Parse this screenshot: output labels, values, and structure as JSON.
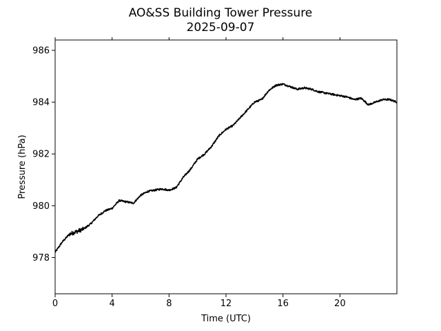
{
  "chart_data": {
    "type": "line",
    "title": "AO&SS Building Tower Pressure",
    "subtitle": "2025-09-07",
    "xlabel": "Time (UTC)",
    "ylabel": "Pressure (hPa)",
    "xlim": [
      0,
      24
    ],
    "ylim": [
      976.6,
      986.4
    ],
    "xticks": [
      0,
      4,
      8,
      12,
      16,
      20
    ],
    "yticks": [
      978,
      980,
      982,
      984,
      986
    ],
    "grid": false,
    "legend": "none",
    "line_color": "#000000",
    "series": [
      {
        "x": [
          0,
          0.5,
          1.0,
          1.5,
          2.0,
          2.5,
          3.0,
          3.5,
          4.0,
          4.5,
          5.0,
          5.5,
          6.0,
          6.5,
          7.0,
          7.5,
          8.0,
          8.5,
          9.0,
          9.5,
          10.0,
          10.5,
          11.0,
          11.5,
          12.0,
          12.5,
          13.0,
          13.5,
          14.0,
          14.5,
          15.0,
          15.5,
          16.0,
          16.5,
          17.0,
          17.5,
          18.0,
          18.5,
          19.0,
          19.5,
          20.0,
          20.5,
          21.0,
          21.5,
          22.0,
          22.5,
          23.0,
          23.5,
          24.0
        ],
        "y": [
          978.2,
          978.6,
          978.9,
          979.0,
          979.1,
          979.3,
          979.6,
          979.8,
          979.9,
          980.2,
          980.15,
          980.1,
          980.4,
          980.55,
          980.6,
          980.65,
          980.6,
          980.7,
          981.1,
          981.4,
          981.8,
          982.0,
          982.3,
          982.7,
          982.95,
          983.1,
          983.4,
          983.7,
          984.0,
          984.1,
          984.45,
          984.65,
          984.7,
          984.6,
          984.5,
          984.55,
          984.5,
          984.4,
          984.35,
          984.3,
          984.25,
          984.2,
          984.1,
          984.15,
          983.9,
          984.0,
          984.1,
          984.1,
          984.0
        ]
      }
    ]
  }
}
